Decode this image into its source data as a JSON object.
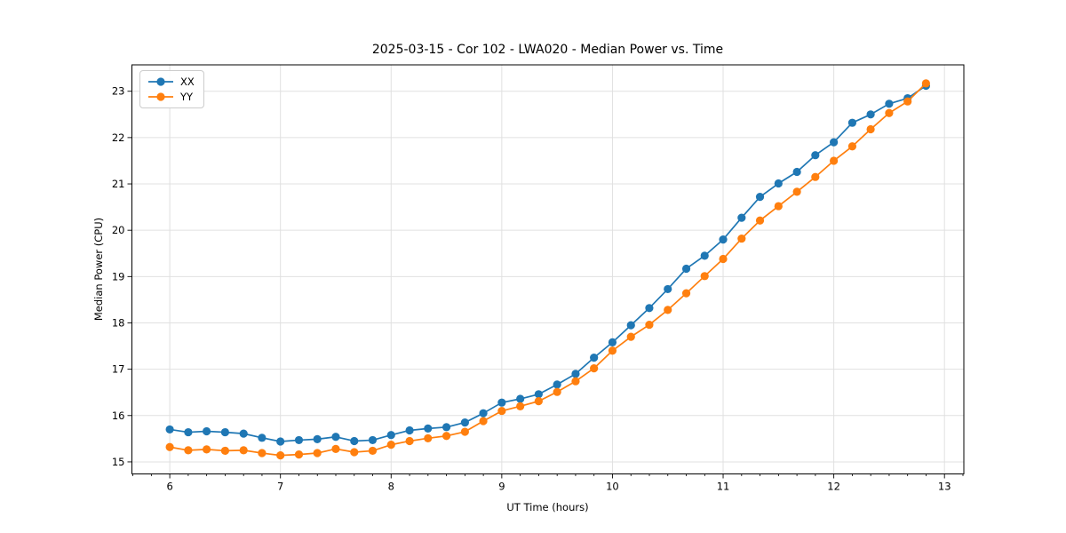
{
  "chart_data": {
    "type": "line",
    "title": "2025-03-15 - Cor 102 - LWA020 - Median Power vs. Time",
    "xlabel": "UT Time (hours)",
    "ylabel": "Median Power (CPU)",
    "xlim": [
      5.658,
      13.175
    ],
    "ylim": [
      14.74,
      23.57
    ],
    "x_ticks": [
      6,
      7,
      8,
      9,
      10,
      11,
      12,
      13
    ],
    "y_ticks": [
      15,
      16,
      17,
      18,
      19,
      20,
      21,
      22,
      23
    ],
    "x_minor_step": 0.16667,
    "grid": true,
    "grid_color": "#e0e0e0",
    "legend_position": "upper-left",
    "x": [
      6.0,
      6.167,
      6.333,
      6.5,
      6.667,
      6.833,
      7.0,
      7.167,
      7.333,
      7.5,
      7.667,
      7.833,
      8.0,
      8.167,
      8.333,
      8.5,
      8.667,
      8.833,
      9.0,
      9.167,
      9.333,
      9.5,
      9.667,
      9.833,
      10.0,
      10.167,
      10.333,
      10.5,
      10.667,
      10.833,
      11.0,
      11.167,
      11.333,
      11.5,
      11.667,
      11.833,
      12.0,
      12.167,
      12.333,
      12.5,
      12.667,
      12.833
    ],
    "series": [
      {
        "name": "XX",
        "color": "#1f77b4",
        "values": [
          15.7,
          15.64,
          15.66,
          15.64,
          15.61,
          15.52,
          15.44,
          15.47,
          15.49,
          15.54,
          15.45,
          15.47,
          15.58,
          15.68,
          15.72,
          15.75,
          15.85,
          16.05,
          16.28,
          16.36,
          16.46,
          16.67,
          16.9,
          17.25,
          17.58,
          17.95,
          18.32,
          18.73,
          19.17,
          19.45,
          19.8,
          20.27,
          20.72,
          21.01,
          21.26,
          21.62,
          21.9,
          22.32,
          22.5,
          22.73,
          22.85,
          23.12
        ]
      },
      {
        "name": "YY",
        "color": "#ff7f0e",
        "values": [
          15.32,
          15.25,
          15.27,
          15.24,
          15.25,
          15.19,
          15.14,
          15.16,
          15.19,
          15.28,
          15.21,
          15.24,
          15.37,
          15.45,
          15.51,
          15.56,
          15.65,
          15.88,
          16.1,
          16.2,
          16.31,
          16.51,
          16.74,
          17.02,
          17.4,
          17.7,
          17.96,
          18.28,
          18.64,
          19.01,
          19.38,
          19.82,
          20.21,
          20.52,
          20.83,
          21.15,
          21.5,
          21.81,
          22.18,
          22.53,
          22.78,
          23.17
        ]
      }
    ]
  }
}
